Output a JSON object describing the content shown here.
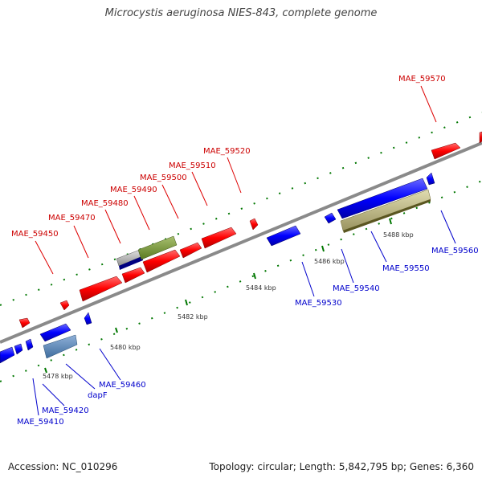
{
  "title": "Microcystis aeruginosa NIES-843, complete genome",
  "footer": {
    "accession": "Accession: NC_010296",
    "topology": "Topology: circular; Length: 5,842,795 bp; Genes: 6,360"
  },
  "colors": {
    "forward": "#ff0000",
    "reverse": "#0000ff",
    "forward_label": "#cc0000",
    "reverse_label": "#0000cc",
    "backbone": "#8a8a8a",
    "tick": "#007700"
  },
  "ticks": [
    "5478 kbp",
    "5480 kbp",
    "5482 kbp",
    "5484 kbp",
    "5486 kbp",
    "5488 kbp"
  ],
  "genes_forward": [
    "MAE_59450",
    "MAE_59470",
    "MAE_59480",
    "MAE_59490",
    "MAE_59500",
    "MAE_59510",
    "MAE_59520",
    "MAE_59570"
  ],
  "genes_reverse": [
    "MAE_59410",
    "MAE_59420",
    "dapF",
    "MAE_59460",
    "MAE_59530",
    "MAE_59540",
    "MAE_59550",
    "MAE_59560"
  ]
}
